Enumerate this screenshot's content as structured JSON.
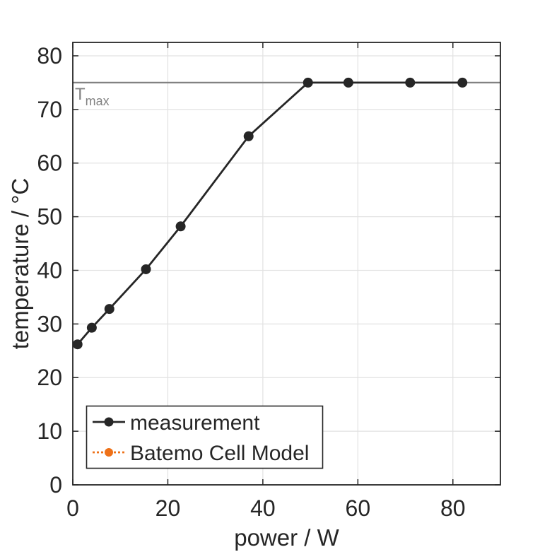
{
  "chart_data": {
    "type": "line",
    "title": "",
    "xlabel": "power / W",
    "ylabel": "temperature / °C",
    "xlim": [
      0,
      90
    ],
    "ylim": [
      0,
      82.5
    ],
    "xticks": [
      0,
      20,
      40,
      60,
      80
    ],
    "yticks": [
      0,
      10,
      20,
      30,
      40,
      50,
      60,
      70,
      80
    ],
    "grid": true,
    "background_color": "#ffffff",
    "ink_color": "#262626",
    "grid_color": "#e2e2e2",
    "threshold": {
      "value": 75,
      "label": "T",
      "label_subscript": "max",
      "color": "#828282"
    },
    "series": [
      {
        "name": "measurement",
        "color": "#262626",
        "line_style": "solid",
        "marker": "circle",
        "x": [
          1,
          4,
          7.7,
          15.4,
          22.7,
          37,
          49.5,
          58,
          71,
          82
        ],
        "y": [
          26.2,
          29.3,
          32.8,
          40.2,
          48.2,
          65,
          75,
          75,
          75,
          75
        ]
      },
      {
        "name": "Batemo Cell Model",
        "color": "#ee7118",
        "line_style": "dotted",
        "marker": "circle",
        "x": [],
        "y": []
      }
    ],
    "legend": {
      "position": "southwest",
      "entries": [
        "measurement",
        "Batemo Cell Model"
      ]
    }
  }
}
